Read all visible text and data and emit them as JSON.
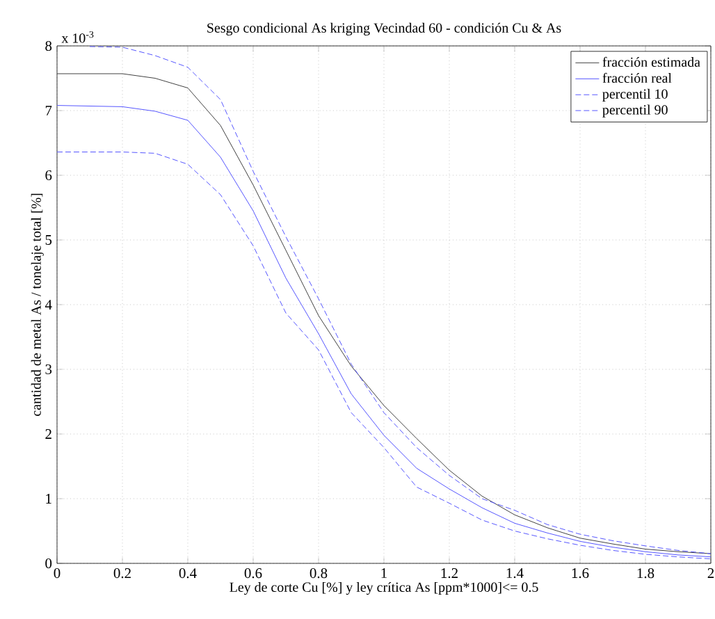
{
  "chart_data": {
    "type": "line",
    "title": "Sesgo condicional As kriging Vecindad 60 - condición Cu & As",
    "xlabel": "Ley de corte Cu [%] y ley crítica As [ppm*1000]<= 0.5",
    "ylabel": "cantidad de metal As / tonelaje total   [%]",
    "annotations": [
      "x 10$^{-3}$"
    ],
    "x": [
      0,
      0.1,
      0.2,
      0.3,
      0.4,
      0.5,
      0.6,
      0.7,
      0.8,
      0.9,
      1.0,
      1.1,
      1.2,
      1.3,
      1.4,
      1.5,
      1.6,
      1.7,
      1.8,
      1.9,
      2.0
    ],
    "series": [
      {
        "name": "fracción estimada",
        "color": "#404040",
        "line_style": "solid",
        "values": [
          7.57,
          7.57,
          7.57,
          7.5,
          7.35,
          6.77,
          5.85,
          4.84,
          3.83,
          3.05,
          2.44,
          1.93,
          1.44,
          1.04,
          0.75,
          0.55,
          0.39,
          0.3,
          0.22,
          0.18,
          0.15
        ]
      },
      {
        "name": "fracción real",
        "color": "#5555ff",
        "line_style": "solid",
        "values": [
          7.08,
          7.07,
          7.06,
          6.99,
          6.85,
          6.28,
          5.45,
          4.41,
          3.55,
          2.62,
          1.98,
          1.47,
          1.15,
          0.86,
          0.62,
          0.47,
          0.34,
          0.25,
          0.18,
          0.13,
          0.1
        ]
      },
      {
        "name": "percentil 10",
        "color": "#5555ff",
        "line_style": "dashed",
        "values": [
          6.36,
          6.36,
          6.36,
          6.34,
          6.17,
          5.7,
          4.91,
          3.87,
          3.3,
          2.33,
          1.79,
          1.18,
          0.93,
          0.67,
          0.5,
          0.38,
          0.28,
          0.2,
          0.14,
          0.1,
          0.07
        ]
      },
      {
        "name": "percentil 90",
        "color": "#5555ff",
        "line_style": "dashed",
        "values": [
          null,
          7.99,
          7.98,
          7.85,
          7.67,
          7.17,
          6.06,
          5.05,
          4.09,
          3.08,
          2.33,
          1.79,
          1.36,
          1.0,
          0.82,
          0.6,
          0.45,
          0.35,
          0.27,
          0.2,
          0.15
        ]
      }
    ],
    "xlim": [
      0,
      2
    ],
    "ylim": [
      0,
      8
    ],
    "xticks": [
      0,
      0.2,
      0.4,
      0.6,
      0.8,
      1,
      1.2,
      1.4,
      1.6,
      1.8,
      2
    ],
    "yticks": [
      0,
      1,
      2,
      3,
      4,
      5,
      6,
      7,
      8
    ],
    "grid": true,
    "legend": "top right"
  }
}
